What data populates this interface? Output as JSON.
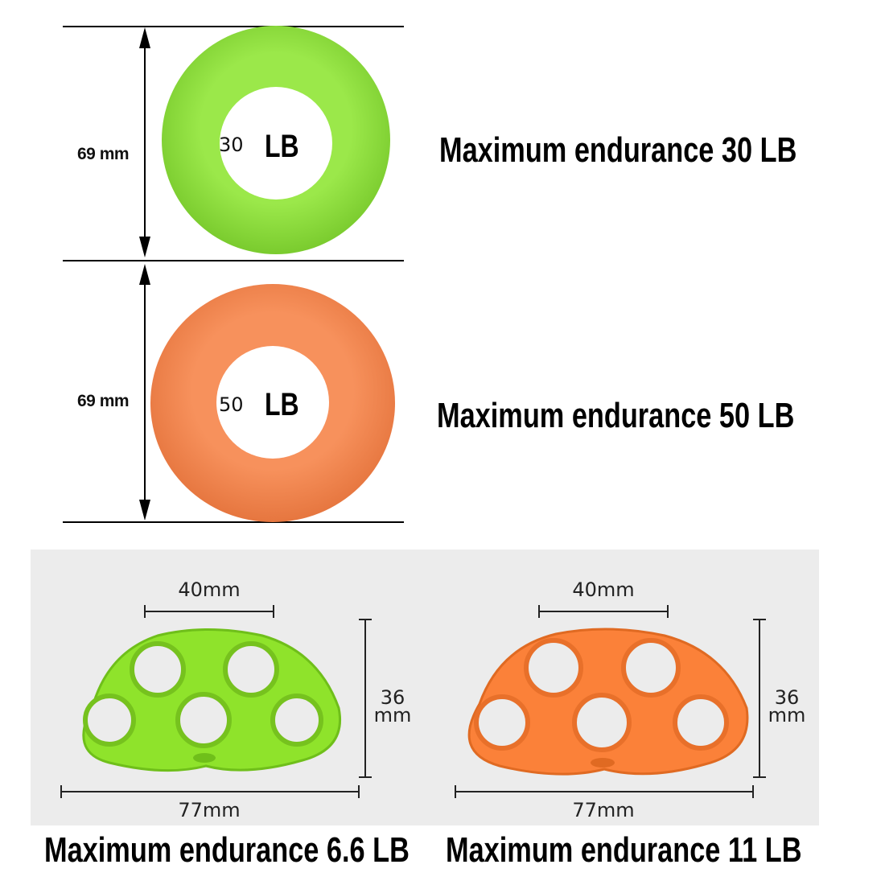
{
  "rings": [
    {
      "dimension": "69 mm",
      "ring_weight": "30",
      "ring_unit": "LB",
      "endurance": "Maximum endurance 30 LB",
      "color": "#8FDF3D"
    },
    {
      "dimension": "69 mm",
      "ring_weight": "50",
      "ring_unit": "LB",
      "endurance": "Maximum endurance 50 LB",
      "color": "#F48B54"
    }
  ],
  "finger_trainers": [
    {
      "top_width": "40mm",
      "height": "36\nmm",
      "bottom_width": "77mm",
      "endurance": "Maximum endurance 6.6 LB",
      "color": "#8FE32B"
    },
    {
      "top_width": "40mm",
      "height": "36\nmm",
      "bottom_width": "77mm",
      "endurance": "Maximum endurance 11 LB",
      "color": "#FB8139"
    }
  ],
  "icons": [
    "vertical-dimension-arrow-icon",
    "horizontal-dimension-arrow-icon"
  ]
}
